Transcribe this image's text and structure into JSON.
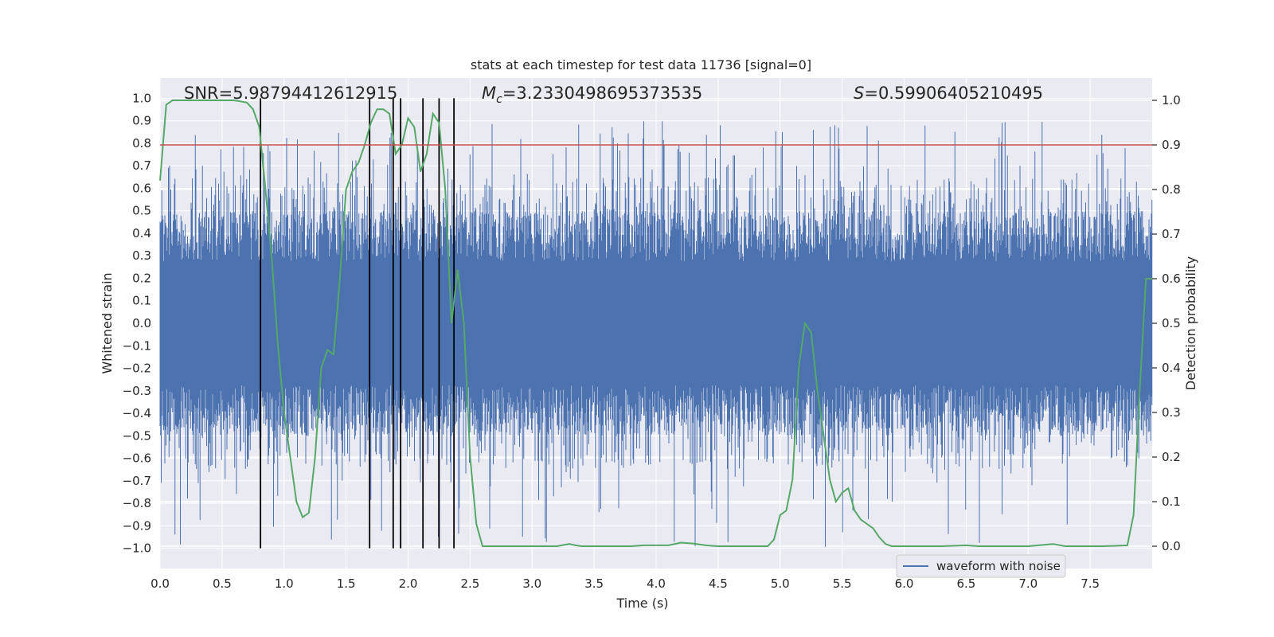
{
  "chart_data": {
    "type": "line",
    "title": "stats at each timestep for test data 11736 [signal=0]",
    "xlabel": "Time (s)",
    "ylabel": "Whitened strain",
    "y2label": "Detection probability",
    "xlim": [
      0.0,
      8.0
    ],
    "ylim": [
      -1.09,
      1.09
    ],
    "y2lim": [
      -0.05,
      1.05
    ],
    "xticks": [
      0.0,
      0.5,
      1.0,
      1.5,
      2.0,
      2.5,
      3.0,
      3.5,
      4.0,
      4.5,
      5.0,
      5.5,
      6.0,
      6.5,
      7.0,
      7.5
    ],
    "xtick_labels": [
      "0.0",
      "0.5",
      "1.0",
      "1.5",
      "2.0",
      "2.5",
      "3.0",
      "3.5",
      "4.0",
      "4.5",
      "5.0",
      "5.5",
      "6.0",
      "6.5",
      "7.0",
      "7.5"
    ],
    "yticks": [
      1.0,
      0.9,
      0.8,
      0.7,
      0.6,
      0.5,
      0.4,
      0.3,
      0.2,
      0.1,
      0.0,
      -0.1,
      -0.2,
      -0.3,
      -0.4,
      -0.5,
      -0.6,
      -0.7,
      -0.8,
      -0.9,
      -1.0
    ],
    "ytick_labels": [
      "1.0",
      "0.9",
      "0.8",
      "0.7",
      "0.6",
      "0.5",
      "0.4",
      "0.3",
      "0.2",
      "0.1",
      "0.0",
      "−0.1",
      "−0.2",
      "−0.3",
      "−0.4",
      "−0.5",
      "−0.6",
      "−0.7",
      "−0.8",
      "−0.9",
      "−1.0"
    ],
    "y2ticks": [
      1.0,
      0.9,
      0.8,
      0.7,
      0.6,
      0.5,
      0.4,
      0.3,
      0.2,
      0.1,
      0.0
    ],
    "y2tick_labels": [
      "1.0",
      "0.9",
      "0.8",
      "0.7",
      "0.6",
      "0.5",
      "0.4",
      "0.3",
      "0.2",
      "0.1",
      "0.0"
    ],
    "grid": true,
    "legend": {
      "position": "lower-right",
      "entries": [
        "waveform with noise"
      ]
    },
    "annotations": {
      "snr": "SNR=5.98794412612915",
      "mc_symbol": "M",
      "mc_subscript": "c",
      "mc_value": "=3.2330498695373535",
      "s_symbol": "S",
      "s_value": "=0.59906405210495"
    },
    "waveform": {
      "name": "waveform with noise",
      "color": "#4c72b0",
      "duration": 8.0,
      "core_amplitude": 0.5,
      "spike_max": 0.9,
      "spike_min": -1.0
    },
    "threshold": {
      "value": 0.9,
      "axis": "right",
      "color": "#c44e52"
    },
    "trigger_times": [
      0.81,
      1.69,
      1.88,
      1.94,
      2.12,
      2.25,
      2.37
    ],
    "trigger_ylim": [
      -1.0,
      1.0
    ],
    "detection_probability": {
      "color": "#55a868",
      "x": [
        0.0,
        0.05,
        0.1,
        0.2,
        0.3,
        0.4,
        0.5,
        0.6,
        0.7,
        0.75,
        0.8,
        0.85,
        0.9,
        0.95,
        1.0,
        1.05,
        1.1,
        1.15,
        1.2,
        1.25,
        1.3,
        1.35,
        1.4,
        1.45,
        1.5,
        1.55,
        1.6,
        1.65,
        1.7,
        1.75,
        1.8,
        1.85,
        1.9,
        1.95,
        2.0,
        2.05,
        2.1,
        2.15,
        2.2,
        2.25,
        2.3,
        2.35,
        2.4,
        2.45,
        2.5,
        2.55,
        2.6,
        2.65,
        2.7,
        2.75,
        2.8,
        2.85,
        2.9,
        3.0,
        3.1,
        3.2,
        3.3,
        3.35,
        3.4,
        3.5,
        3.6,
        3.8,
        3.9,
        4.0,
        4.1,
        4.2,
        4.3,
        4.4,
        4.5,
        4.7,
        4.9,
        4.95,
        5.0,
        5.05,
        5.1,
        5.15,
        5.2,
        5.25,
        5.3,
        5.35,
        5.4,
        5.45,
        5.5,
        5.55,
        5.6,
        5.65,
        5.7,
        5.75,
        5.8,
        5.85,
        5.9,
        5.95,
        6.0,
        6.05,
        6.1,
        6.3,
        6.5,
        6.6,
        6.8,
        7.0,
        7.2,
        7.3,
        7.4,
        7.6,
        7.8,
        7.85,
        7.9,
        7.95,
        8.0
      ],
      "y": [
        0.82,
        0.99,
        1.0,
        1.0,
        1.0,
        1.0,
        1.0,
        1.0,
        0.995,
        0.98,
        0.94,
        0.8,
        0.65,
        0.45,
        0.3,
        0.2,
        0.1,
        0.065,
        0.075,
        0.2,
        0.4,
        0.44,
        0.43,
        0.6,
        0.8,
        0.84,
        0.86,
        0.9,
        0.95,
        0.98,
        0.98,
        0.97,
        0.88,
        0.9,
        0.96,
        0.94,
        0.84,
        0.88,
        0.97,
        0.95,
        0.8,
        0.5,
        0.62,
        0.5,
        0.2,
        0.05,
        0.0,
        0.0,
        0.0,
        0.0,
        0.0,
        0.0,
        0.0,
        0.0,
        0.0,
        0.0,
        0.005,
        0.002,
        0.0,
        0.0,
        0.0,
        0.0,
        0.002,
        0.002,
        0.002,
        0.008,
        0.006,
        0.002,
        0.0,
        0.0,
        0.0,
        0.015,
        0.07,
        0.08,
        0.15,
        0.4,
        0.5,
        0.48,
        0.35,
        0.25,
        0.15,
        0.1,
        0.12,
        0.13,
        0.08,
        0.06,
        0.05,
        0.04,
        0.02,
        0.005,
        0.0,
        0.0,
        0.0,
        0.0,
        0.0,
        0.0,
        0.002,
        0.0,
        0.0,
        0.0,
        0.005,
        0.0,
        0.0,
        0.0,
        0.002,
        0.07,
        0.35,
        0.6,
        0.6
      ]
    }
  }
}
